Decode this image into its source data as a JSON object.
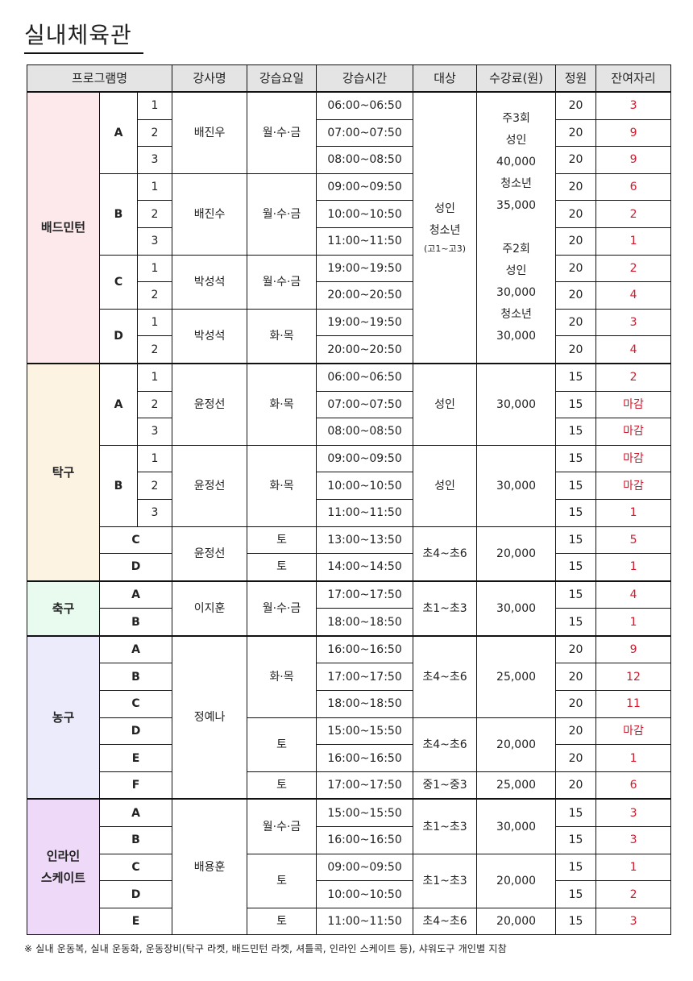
{
  "title": "실내체육관",
  "header": [
    "프로그램명",
    "강사명",
    "강습요일",
    "강습시간",
    "대상",
    "수강료(원)",
    "정원",
    "잔여자리"
  ],
  "colors": {
    "header_bg": "#e4e4e4",
    "remaining_text": "#d0192c"
  },
  "sports": [
    {
      "name": "배드민턴",
      "color": "#fde9ec",
      "rows": [
        {
          "g": [
            "A",
            3
          ],
          "s": "1",
          "i": [
            "배진우",
            3
          ],
          "d": [
            "월·수·금",
            3
          ],
          "t": "06:00~06:50",
          "a": [
            "성인\n청소년\n(고1~고3)",
            10
          ],
          "f": [
            "주3회\n성인\n40,000\n청소년\n35,000\n\n주2회\n성인\n30,000\n청소년\n30,000",
            10
          ],
          "c": "20",
          "r": "3"
        },
        {
          "s": "2",
          "t": "07:00~07:50",
          "c": "20",
          "r": "9"
        },
        {
          "s": "3",
          "t": "08:00~08:50",
          "c": "20",
          "r": "9"
        },
        {
          "g": [
            "B",
            3
          ],
          "s": "1",
          "i": [
            "배진수",
            3
          ],
          "d": [
            "월·수·금",
            3
          ],
          "t": "09:00~09:50",
          "c": "20",
          "r": "6"
        },
        {
          "s": "2",
          "t": "10:00~10:50",
          "c": "20",
          "r": "2"
        },
        {
          "s": "3",
          "t": "11:00~11:50",
          "c": "20",
          "r": "1"
        },
        {
          "g": [
            "C",
            2
          ],
          "s": "1",
          "i": [
            "박성석",
            2
          ],
          "d": [
            "월·수·금",
            2
          ],
          "t": "19:00~19:50",
          "c": "20",
          "r": "2"
        },
        {
          "s": "2",
          "t": "20:00~20:50",
          "c": "20",
          "r": "4"
        },
        {
          "g": [
            "D",
            2
          ],
          "s": "1",
          "i": [
            "박성석",
            2
          ],
          "d": [
            "화·목",
            2
          ],
          "t": "19:00~19:50",
          "c": "20",
          "r": "3"
        },
        {
          "s": "2",
          "t": "20:00~20:50",
          "c": "20",
          "r": "4"
        }
      ]
    },
    {
      "name": "탁구",
      "color": "#fdf3e3",
      "rows": [
        {
          "g": [
            "A",
            3
          ],
          "s": "1",
          "i": [
            "윤정선",
            3
          ],
          "d": [
            "화·목",
            3
          ],
          "t": "06:00~06:50",
          "a": [
            "성인",
            3
          ],
          "f": [
            "30,000",
            3
          ],
          "c": "15",
          "r": "2"
        },
        {
          "s": "2",
          "t": "07:00~07:50",
          "c": "15",
          "r": "마감"
        },
        {
          "s": "3",
          "t": "08:00~08:50",
          "c": "15",
          "r": "마감"
        },
        {
          "g": [
            "B",
            3
          ],
          "s": "1",
          "i": [
            "윤정선",
            3
          ],
          "d": [
            "화·목",
            3
          ],
          "t": "09:00~09:50",
          "a": [
            "성인",
            3
          ],
          "f": [
            "30,000",
            3
          ],
          "c": "15",
          "r": "마감"
        },
        {
          "s": "2",
          "t": "10:00~10:50",
          "c": "15",
          "r": "마감"
        },
        {
          "s": "3",
          "t": "11:00~11:50",
          "c": "15",
          "r": "1"
        },
        {
          "g": "C",
          "i": [
            "윤정선",
            2
          ],
          "d": "토",
          "t": "13:00~13:50",
          "a": [
            "초4~초6",
            2
          ],
          "f": [
            "20,000",
            2
          ],
          "c": "15",
          "r": "5"
        },
        {
          "g": "D",
          "d": "토",
          "t": "14:00~14:50",
          "c": "15",
          "r": "1"
        }
      ]
    },
    {
      "name": "축구",
      "color": "#e9fbee",
      "rows": [
        {
          "g": "A",
          "i": [
            "이지훈",
            2
          ],
          "d": [
            "월·수·금",
            2
          ],
          "t": "17:00~17:50",
          "a": [
            "초1~초3",
            2
          ],
          "f": [
            "30,000",
            2
          ],
          "c": "15",
          "r": "4"
        },
        {
          "g": "B",
          "t": "18:00~18:50",
          "c": "15",
          "r": "1"
        }
      ]
    },
    {
      "name": "농구",
      "color": "#ebebfc",
      "rows": [
        {
          "g": "A",
          "i": [
            "정예나",
            6
          ],
          "d": [
            "화·목",
            3
          ],
          "t": "16:00~16:50",
          "a": [
            "초4~초6",
            3
          ],
          "f": [
            "25,000",
            3
          ],
          "c": "20",
          "r": "9"
        },
        {
          "g": "B",
          "t": "17:00~17:50",
          "c": "20",
          "r": "12"
        },
        {
          "g": "C",
          "t": "18:00~18:50",
          "c": "20",
          "r": "11"
        },
        {
          "g": "D",
          "d": [
            "토",
            2
          ],
          "t": "15:00~15:50",
          "a": [
            "초4~초6",
            2
          ],
          "f": [
            "20,000",
            2
          ],
          "c": "20",
          "r": "마감"
        },
        {
          "g": "E",
          "t": "16:00~16:50",
          "c": "20",
          "r": "1"
        },
        {
          "g": "F",
          "d": "토",
          "t": "17:00~17:50",
          "a": "중1~중3",
          "f": "25,000",
          "c": "20",
          "r": "6"
        }
      ]
    },
    {
      "name": "인라인\n스케이트",
      "color": "#efd9f9",
      "rows": [
        {
          "g": "A",
          "i": [
            "배용훈",
            5
          ],
          "d": [
            "월·수·금",
            2
          ],
          "t": "15:00~15:50",
          "a": [
            "초1~초3",
            2
          ],
          "f": [
            "30,000",
            2
          ],
          "c": "15",
          "r": "3"
        },
        {
          "g": "B",
          "t": "16:00~16:50",
          "c": "15",
          "r": "3"
        },
        {
          "g": "C",
          "d": [
            "토",
            2
          ],
          "t": "09:00~09:50",
          "a": [
            "초1~초3",
            2
          ],
          "f": [
            "20,000",
            2
          ],
          "c": "15",
          "r": "1"
        },
        {
          "g": "D",
          "t": "10:00~10:50",
          "c": "15",
          "r": "2"
        },
        {
          "g": "E",
          "d": "토",
          "t": "11:00~11:50",
          "a": "초4~초6",
          "f": "20,000",
          "c": "15",
          "r": "3"
        }
      ]
    }
  ],
  "footnote": "※ 실내 운동복, 실내 운동화, 운동장비(탁구 라켓, 배드민턴 라켓, 셔틀콕, 인라인 스케이트 등), 샤워도구 개인별 지참"
}
